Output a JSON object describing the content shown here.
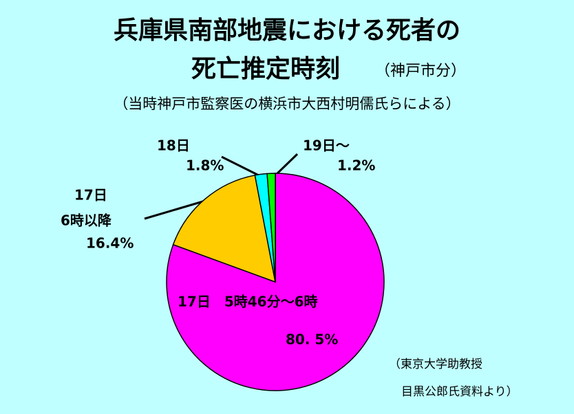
{
  "chart_data": {
    "type": "pie",
    "title": [
      "兵庫県南部地震における死者の",
      "死亡推定時刻",
      "（神戸市分）"
    ],
    "subtitle": "（当時神戸市監察医の横浜市大西村明儒氏らによる）",
    "categories": [
      [
        "17日　5時46分～6時"
      ],
      [
        "17日",
        "6時以降"
      ],
      [
        "18日"
      ],
      [
        "19日～"
      ]
    ],
    "values": [
      80.5,
      16.4,
      1.8,
      1.2
    ],
    "value_labels": [
      "80. 5%",
      "16.4%",
      "1.8%",
      "1.2%"
    ],
    "colors": [
      "#ff00ff",
      "#ffcc00",
      "#00ffff",
      "#00ff00"
    ],
    "source": [
      "（東京大学助教授",
      "目黒公郎氏資料より）"
    ]
  }
}
